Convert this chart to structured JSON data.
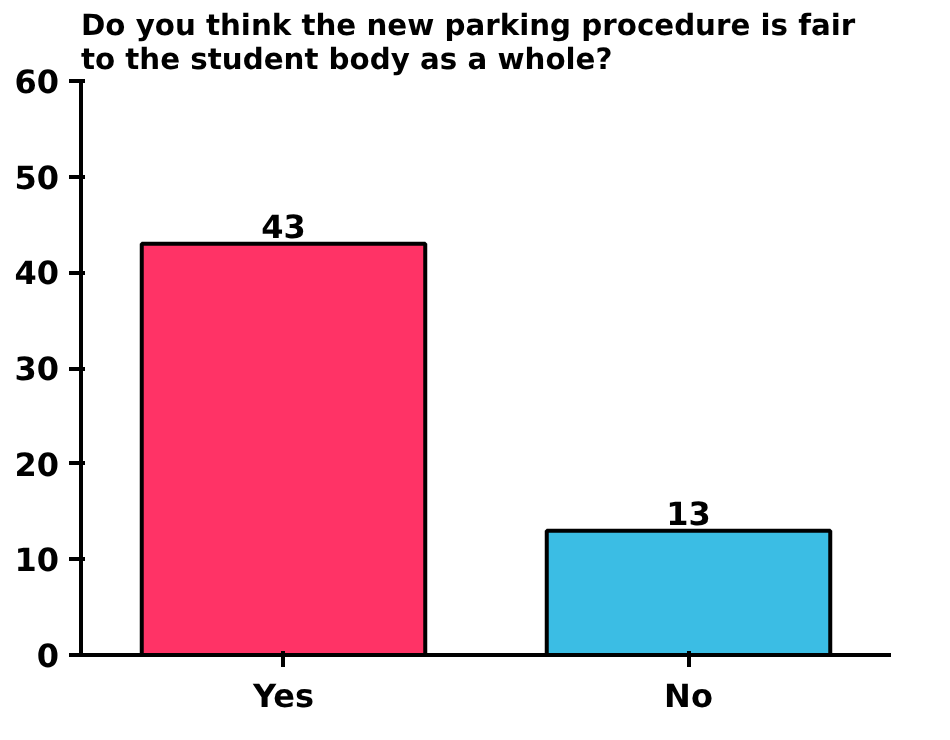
{
  "chart_data": {
    "type": "bar",
    "title": "Do you think the new parking procedure is fair to the student body as a whole?",
    "categories": [
      "Yes",
      "No"
    ],
    "values": [
      43,
      13
    ],
    "colors": [
      "#ff3366",
      "#3bbde4"
    ],
    "ylim": [
      0,
      60
    ],
    "yticks": [
      0,
      10,
      20,
      30,
      40,
      50,
      60
    ],
    "grid": false,
    "data_labels": true
  }
}
